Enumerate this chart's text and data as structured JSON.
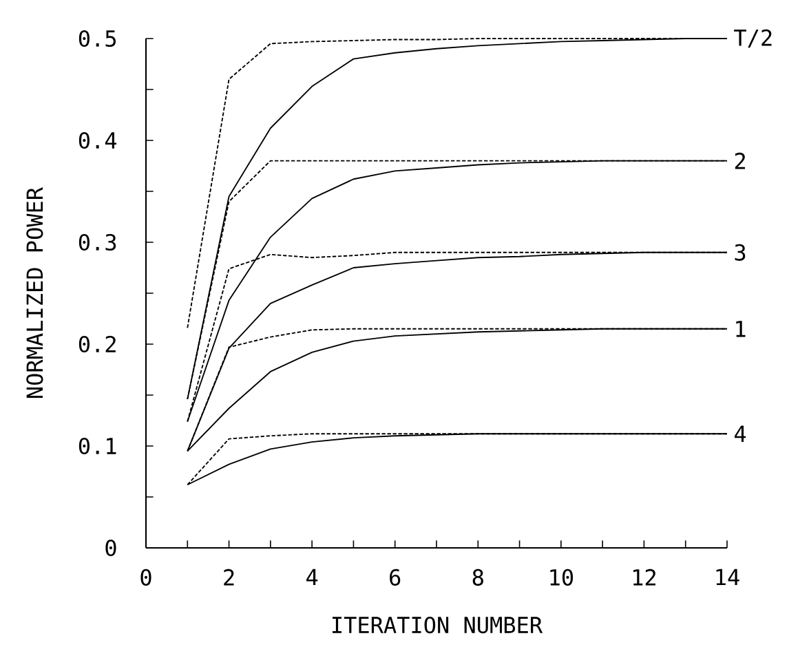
{
  "chart_data": {
    "type": "line",
    "xlabel": "ITERATION NUMBER",
    "ylabel": "NORMALIZED POWER",
    "x": [
      1,
      2,
      3,
      4,
      5,
      6,
      7,
      8,
      9,
      10,
      11,
      12,
      13,
      14
    ],
    "xlim": [
      0,
      14
    ],
    "ylim": [
      0,
      0.5
    ],
    "xticks": [
      0,
      {
        "value": 1,
        "label": null
      },
      2,
      {
        "value": 3,
        "label": null
      },
      4,
      {
        "value": 5,
        "label": null
      },
      6,
      {
        "value": 7,
        "label": null
      },
      8,
      {
        "value": 9,
        "label": null
      },
      10,
      {
        "value": 11,
        "label": null
      },
      12,
      {
        "value": 13,
        "label": null
      },
      14
    ],
    "yticks": [
      0,
      {
        "value": 0.05,
        "label": null
      },
      0.1,
      {
        "value": 0.15,
        "label": null
      },
      0.2,
      {
        "value": 0.25,
        "label": null
      },
      0.3,
      {
        "value": 0.35,
        "label": null
      },
      0.4,
      {
        "value": 0.45,
        "label": null
      },
      0.5
    ],
    "grid": false,
    "legend": false,
    "marker": "none",
    "series": [
      {
        "color": "#000000",
        "line_style": "dashed",
        "values": [
          0.216,
          0.46,
          0.495,
          0.497,
          0.498,
          0.499,
          0.499,
          0.5,
          0.5,
          0.5,
          0.5,
          0.5,
          0.5,
          0.5
        ]
      },
      {
        "name": "T/2",
        "color": "#000000",
        "line_style": "solid",
        "values": [
          0.146,
          0.345,
          0.412,
          0.453,
          0.48,
          0.486,
          0.49,
          0.493,
          0.495,
          0.497,
          0.498,
          0.499,
          0.5,
          0.5
        ]
      },
      {
        "color": "#000000",
        "line_style": "dashed",
        "values": [
          0.146,
          0.34,
          0.38,
          0.38,
          0.38,
          0.38,
          0.38,
          0.38,
          0.38,
          0.38,
          0.38,
          0.38,
          0.38,
          0.38
        ]
      },
      {
        "name": "2",
        "color": "#000000",
        "line_style": "solid",
        "values": [
          0.124,
          0.243,
          0.305,
          0.343,
          0.362,
          0.37,
          0.373,
          0.376,
          0.378,
          0.379,
          0.38,
          0.38,
          0.38,
          0.38
        ]
      },
      {
        "color": "#000000",
        "line_style": "dashed",
        "values": [
          0.124,
          0.274,
          0.288,
          0.285,
          0.287,
          0.29,
          0.29,
          0.29,
          0.29,
          0.29,
          0.29,
          0.29,
          0.29,
          0.29
        ]
      },
      {
        "name": "3",
        "color": "#000000",
        "line_style": "solid",
        "values": [
          0.095,
          0.196,
          0.24,
          0.258,
          0.275,
          0.279,
          0.282,
          0.285,
          0.286,
          0.288,
          0.289,
          0.29,
          0.29,
          0.29
        ]
      },
      {
        "color": "#000000",
        "line_style": "dashed",
        "values": [
          0.095,
          0.197,
          0.207,
          0.214,
          0.215,
          0.215,
          0.215,
          0.215,
          0.215,
          0.215,
          0.215,
          0.215,
          0.215,
          0.215
        ]
      },
      {
        "name": "1",
        "color": "#000000",
        "line_style": "solid",
        "values": [
          0.095,
          0.137,
          0.173,
          0.192,
          0.203,
          0.208,
          0.21,
          0.212,
          0.213,
          0.214,
          0.215,
          0.215,
          0.215,
          0.215
        ]
      },
      {
        "color": "#000000",
        "line_style": "dashed",
        "values": [
          0.062,
          0.107,
          0.11,
          0.112,
          0.112,
          0.112,
          0.112,
          0.112,
          0.112,
          0.112,
          0.112,
          0.112,
          0.112,
          0.112
        ]
      },
      {
        "name": "4",
        "color": "#000000",
        "line_style": "solid",
        "values": [
          0.062,
          0.082,
          0.097,
          0.104,
          0.108,
          0.11,
          0.111,
          0.112,
          0.112,
          0.112,
          0.112,
          0.112,
          0.112,
          0.112
        ]
      }
    ]
  }
}
